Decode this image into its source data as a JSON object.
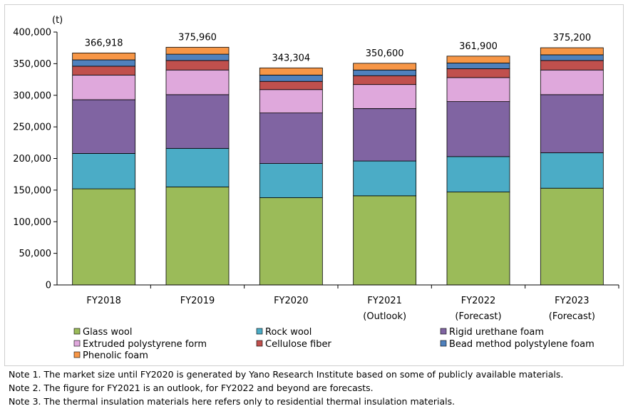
{
  "chart_data": {
    "type": "bar",
    "stacked": true,
    "unit_label": "(t)",
    "ylim": [
      0,
      400000
    ],
    "yticks": [
      "0",
      "50,000",
      "100,000",
      "150,000",
      "200,000",
      "250,000",
      "300,000",
      "350,000",
      "400,000"
    ],
    "categories": [
      [
        "FY2018"
      ],
      [
        "FY2019"
      ],
      [
        "FY2020"
      ],
      [
        "FY2021",
        "(Outlook)"
      ],
      [
        "FY2022",
        "(Forecast)"
      ],
      [
        "FY2023",
        "(Forecast)"
      ]
    ],
    "totals": [
      "366,918",
      "375,960",
      "343,304",
      "350,600",
      "361,900",
      "375,200"
    ],
    "series": [
      {
        "name": "Glass wool",
        "color": "#9bbb59",
        "values": [
          152000,
          155000,
          138000,
          141000,
          147000,
          153000
        ]
      },
      {
        "name": "Rock wool",
        "color": "#4bacc6",
        "values": [
          56000,
          61000,
          54000,
          55000,
          56000,
          56000
        ]
      },
      {
        "name": "Rigid urethane foam",
        "color": "#8064a2",
        "values": [
          85000,
          85000,
          80000,
          83000,
          87000,
          92000
        ]
      },
      {
        "name": "Extruded polystyrene form",
        "color": "#dfa8dc",
        "values": [
          39000,
          39000,
          37000,
          38000,
          38000,
          39000
        ]
      },
      {
        "name": "Cellulose fiber",
        "color": "#c0504d",
        "values": [
          14000,
          15000,
          13000,
          14000,
          14000,
          15000
        ]
      },
      {
        "name": "Bead method polystylene foam",
        "color": "#4f81bd",
        "values": [
          10000,
          10000,
          10000,
          9000,
          9000,
          9000
        ]
      },
      {
        "name": "Phenolic foam",
        "color": "#f79646",
        "values": [
          10918,
          10960,
          11304,
          10600,
          10900,
          11200
        ]
      }
    ]
  },
  "notes": [
    "Note 1.  The market size until FY2020 is generated by Yano Research Institute based on some of publicly available materials.",
    "Note 2.  The figure for FY2021 is an outlook, for FY2022 and beyond are forecasts.",
    "Note 3.  The thermal insulation materials here refers only to residential thermal insulation materials."
  ]
}
